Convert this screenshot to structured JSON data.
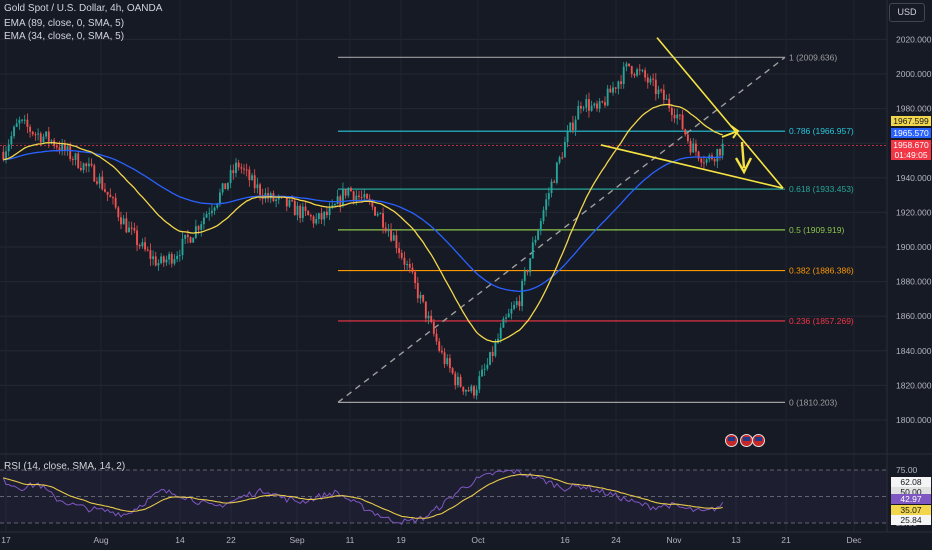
{
  "header": {
    "symbol": "Gold Spot / U.S. Dollar, 4h, OANDA",
    "indicator1": "EMA (89, close, 0, SMA, 5)",
    "indicator2": "EMA (34, close, 0, SMA, 5)",
    "currency_button": "USD"
  },
  "rsi_header": "RSI (14, close, SMA, 14, 2)",
  "price_tags": {
    "ema34": "1967.599",
    "ema89": "1965.570",
    "last_price": "1958.670",
    "countdown": "01:49:05"
  },
  "rsi_tags": {
    "upper": "62.08",
    "ma": "42.97",
    "lower": "35.07",
    "low": "25.84",
    "fifty": "50.00"
  },
  "colors": {
    "background": "#161a25",
    "up": "#26a69a",
    "down": "#ef5350",
    "ema34": "#f2d64b",
    "ema89": "#2962ff",
    "drawing": "#f5e342",
    "rsi_line": "#7e57c2",
    "rsi_ma": "#e6c84a"
  },
  "chart_data": {
    "type": "candlestick",
    "y_ticks": [
      2020,
      2000,
      1980,
      1960,
      1940,
      1920,
      1900,
      1880,
      1860,
      1840,
      1820,
      1800
    ],
    "y_tick_labels": [
      "2020.000",
      "2000.000",
      "1980.000",
      "1960.000",
      "1940.000",
      "1920.000",
      "1900.000",
      "1880.000",
      "1860.000",
      "1840.000",
      "1820.000",
      "1800.000"
    ],
    "x_tick_labels": [
      "17",
      "Aug",
      "14",
      "22",
      "Sep",
      "11",
      "19",
      "Oct",
      "16",
      "24",
      "Nov",
      "13",
      "21",
      "Dec"
    ],
    "fibonacci": [
      {
        "level": "1",
        "value": 2009.636,
        "label": "1 (2009.636)",
        "color": "#9e9e9e"
      },
      {
        "level": "0.786",
        "value": 1966.957,
        "label": "0.786 (1966.957)",
        "color": "#26c6da"
      },
      {
        "level": "0.618",
        "value": 1933.453,
        "label": "0.618 (1933.453)",
        "color": "#26a69a"
      },
      {
        "level": "0.5",
        "value": 1909.919,
        "label": "0.5 (1909.919)",
        "color": "#8bc34a"
      },
      {
        "level": "0.382",
        "value": 1886.386,
        "label": "0.382 (1886.386)",
        "color": "#ff9800"
      },
      {
        "level": "0.236",
        "value": 1857.269,
        "label": "0.236 (1857.269)",
        "color": "#f23645"
      },
      {
        "level": "0",
        "value": 1810.203,
        "label": "0 (1810.203)",
        "color": "#9e9e9e"
      }
    ],
    "price_path": [
      1955,
      1972,
      1966,
      1962,
      1955,
      1948,
      1941,
      1925,
      1910,
      1898,
      1890,
      1896,
      1907,
      1920,
      1932,
      1948,
      1936,
      1928,
      1925,
      1920,
      1915,
      1920,
      1934,
      1927,
      1920,
      1905,
      1885,
      1862,
      1838,
      1822,
      1816,
      1832,
      1855,
      1870,
      1905,
      1935,
      1962,
      1985,
      1978,
      1992,
      2005,
      1998,
      1988,
      1978,
      1958,
      1950,
      1958
    ],
    "rsi_levels": [
      75,
      50,
      25
    ],
    "rsi_tick_labels": [
      "75.00",
      "50.00",
      "25.00"
    ],
    "rsi_path": [
      65,
      58,
      62,
      48,
      42,
      38,
      36,
      33,
      44,
      55,
      52,
      46,
      40,
      45,
      52,
      56,
      48,
      45,
      50,
      54,
      44,
      36,
      28,
      26,
      30,
      42,
      56,
      66,
      72,
      74,
      70,
      64,
      58,
      60,
      55,
      50,
      44,
      40,
      42,
      38,
      35,
      42
    ]
  }
}
